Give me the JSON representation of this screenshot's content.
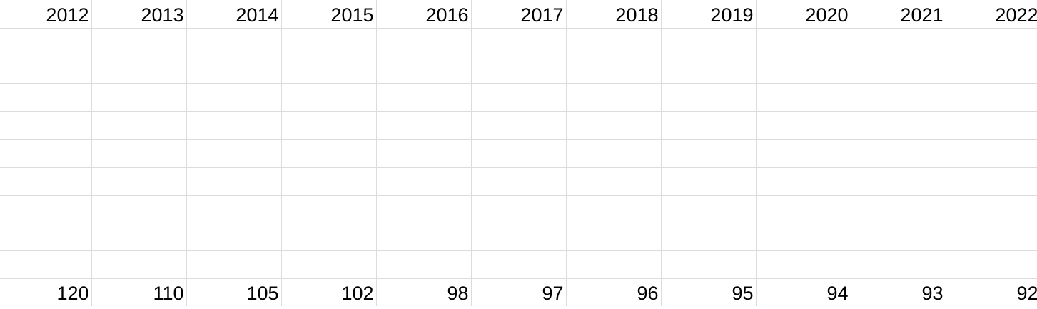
{
  "sheet": {
    "years": [
      "2012",
      "2013",
      "2014",
      "2015",
      "2016",
      "2017",
      "2018",
      "2019",
      "2020",
      "2021",
      "2022"
    ],
    "values": [
      "120",
      "110",
      "105",
      "102",
      "98",
      "97",
      "96",
      "95",
      "94",
      "93",
      "92"
    ]
  },
  "colors": {
    "gridline": "#dadcdf",
    "text": "#000000",
    "background": "#ffffff"
  }
}
